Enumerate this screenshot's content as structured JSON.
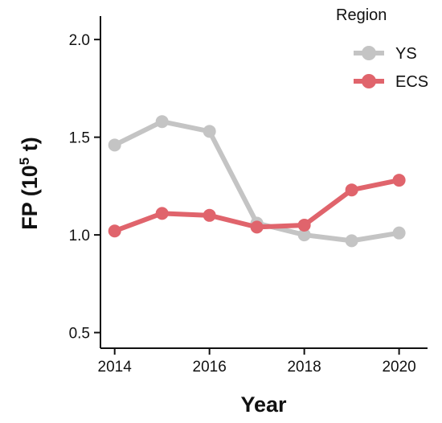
{
  "chart_data": {
    "type": "line",
    "x": [
      2014,
      2015,
      2016,
      2017,
      2018,
      2019,
      2020
    ],
    "xlim": [
      2013.7,
      2020.6
    ],
    "ylim": [
      0.42,
      2.12
    ],
    "xticks": [
      2014,
      2016,
      2018,
      2020
    ],
    "yticks": [
      0.5,
      1.0,
      1.5,
      2.0
    ],
    "xlabel": "Year",
    "ylabel": {
      "main": "FP (10",
      "sup": "5",
      "tail": " t)"
    },
    "grid": false,
    "legend": {
      "title": "Region",
      "placement": "top-right"
    },
    "series": [
      {
        "name": "YS",
        "color": "#c4c4c4",
        "values": [
          1.46,
          1.58,
          1.53,
          1.06,
          1.0,
          0.97,
          1.01
        ]
      },
      {
        "name": "ECS",
        "color": "#e0646c",
        "values": [
          1.02,
          1.11,
          1.1,
          1.04,
          1.05,
          1.23,
          1.28
        ]
      }
    ]
  }
}
